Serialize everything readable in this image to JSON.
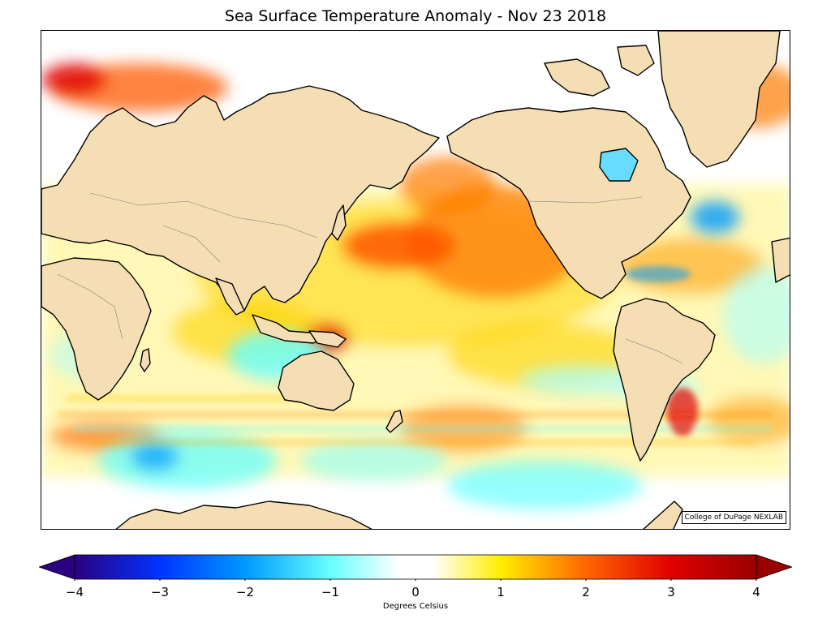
{
  "title": "Sea Surface Temperature Anomaly - Nov 23 2018",
  "credit": "College of DuPage NEXLAB",
  "colors": {
    "land": "#f5deb3",
    "coast": "#000000",
    "border": "#808080"
  },
  "colorbar": {
    "label": "Degrees Celsius",
    "range": [
      -4,
      4
    ],
    "ticks": [
      {
        "value": -4,
        "label": "−4"
      },
      {
        "value": -3,
        "label": "−3"
      },
      {
        "value": -2,
        "label": "−2"
      },
      {
        "value": -1,
        "label": "−1"
      },
      {
        "value": 0,
        "label": "0"
      },
      {
        "value": 1,
        "label": "1"
      },
      {
        "value": 2,
        "label": "2"
      },
      {
        "value": 3,
        "label": "3"
      },
      {
        "value": 4,
        "label": "4"
      }
    ],
    "stops": [
      {
        "value": -4,
        "color": "#2a0080"
      },
      {
        "value": -3,
        "color": "#0033ff"
      },
      {
        "value": -2,
        "color": "#0099ff"
      },
      {
        "value": -1,
        "color": "#66ffff"
      },
      {
        "value": -0.2,
        "color": "#ffffff"
      },
      {
        "value": 0.2,
        "color": "#ffffff"
      },
      {
        "value": 1,
        "color": "#ffee00"
      },
      {
        "value": 2,
        "color": "#ff6600"
      },
      {
        "value": 3,
        "color": "#e00000"
      },
      {
        "value": 4,
        "color": "#990000"
      }
    ]
  }
}
